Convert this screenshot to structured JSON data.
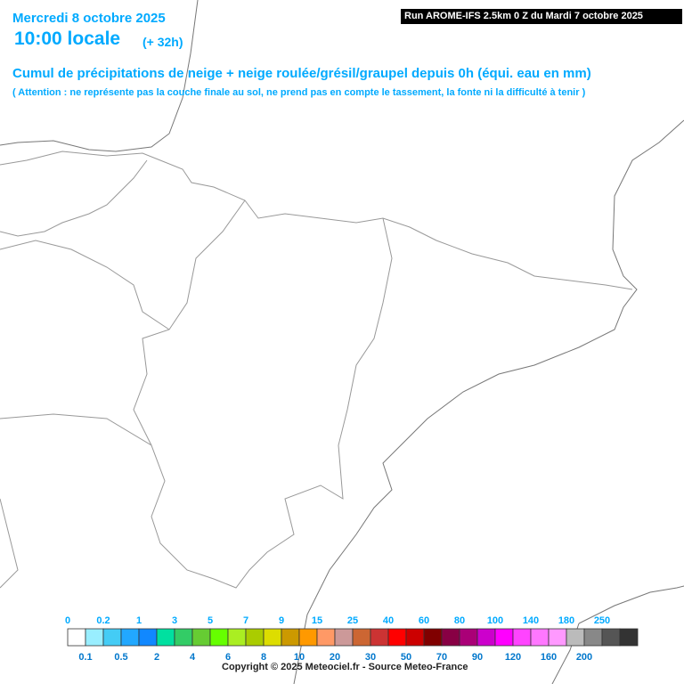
{
  "header": {
    "date": "Mercredi 8 octobre 2025",
    "time": "10:00 locale",
    "offset": "(+ 32h)",
    "run": "Run AROME-IFS 2.5km 0 Z du Mardi 7 octobre 2025",
    "title": "Cumul de précipitations de neige + neige roulée/grésil/graupel depuis 0h (équi. eau en mm)",
    "note": "( Attention : ne représente pas la couche finale au sol, ne prend pas en compte le tassement, la fonte ni la difficulté à tenir )"
  },
  "legend": {
    "items": [
      {
        "value": 0,
        "color": "#ffffff"
      },
      {
        "value": 0.1,
        "color": "#99eeff"
      },
      {
        "value": 0.2,
        "color": "#44ccf5"
      },
      {
        "value": 0.5,
        "color": "#22a8ff"
      },
      {
        "value": 1,
        "color": "#1188ff"
      },
      {
        "value": 2,
        "color": "#00e0a0"
      },
      {
        "value": 3,
        "color": "#33cc66"
      },
      {
        "value": 4,
        "color": "#66cc33"
      },
      {
        "value": 5,
        "color": "#66ff00"
      },
      {
        "value": 6,
        "color": "#aaee22"
      },
      {
        "value": 7,
        "color": "#aacc00"
      },
      {
        "value": 8,
        "color": "#dddd00"
      },
      {
        "value": 9,
        "color": "#cc9900"
      },
      {
        "value": 10,
        "color": "#ff9900"
      },
      {
        "value": 15,
        "color": "#ff9966"
      },
      {
        "value": 20,
        "color": "#cc9999"
      },
      {
        "value": 25,
        "color": "#cc6633"
      },
      {
        "value": 30,
        "color": "#cc3333"
      },
      {
        "value": 40,
        "color": "#ff0000"
      },
      {
        "value": 50,
        "color": "#cc0000"
      },
      {
        "value": 60,
        "color": "#800000"
      },
      {
        "value": 70,
        "color": "#880044"
      },
      {
        "value": 80,
        "color": "#aa0077"
      },
      {
        "value": 90,
        "color": "#cc00cc"
      },
      {
        "value": 100,
        "color": "#ff00ff"
      },
      {
        "value": 120,
        "color": "#ff44ff"
      },
      {
        "value": 140,
        "color": "#ff77ff"
      },
      {
        "value": 160,
        "color": "#ff99ff"
      },
      {
        "value": 180,
        "color": "#bbbbbb"
      },
      {
        "value": 200,
        "color": "#888888"
      },
      {
        "value": 250,
        "color": "#555555"
      }
    ],
    "last_color": "#333333"
  },
  "footer": {
    "copyright": "Copyright © 2025 Meteociel.fr - Source Meteo-France"
  }
}
